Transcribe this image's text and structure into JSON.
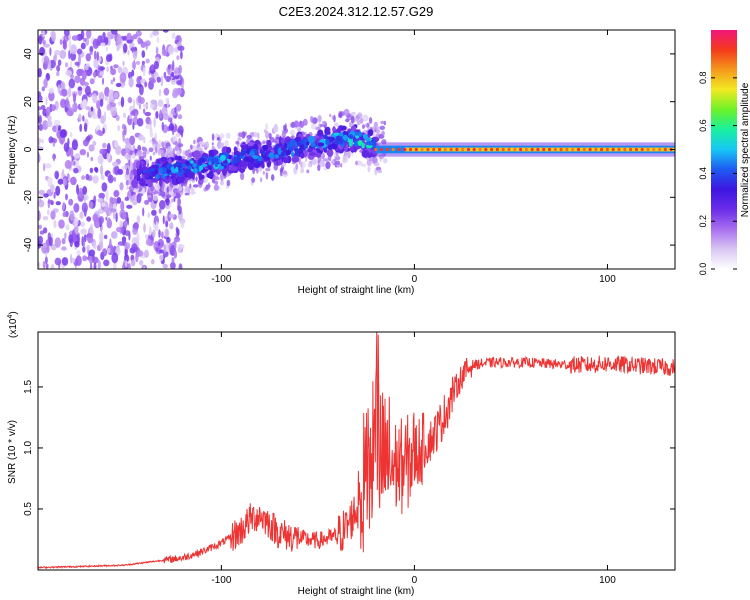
{
  "page": {
    "title": "C2E3.2024.312.12.57.G29"
  },
  "colors": {
    "snr_line": "#ee3333",
    "plot_border": "#000000",
    "colormap": [
      "#ffffff",
      "#d9c6f3",
      "#a86ff0",
      "#6a2ce8",
      "#3d16e0",
      "#1e5bf2",
      "#17c7f5",
      "#18f0a0",
      "#6cf227",
      "#f2ea22",
      "#f59a1c",
      "#f43a1c",
      "#f2167a"
    ]
  },
  "chart_data": [
    {
      "type": "heatmap",
      "name": "spectrogram",
      "xlabel": "Height of straight line (km)",
      "ylabel": "Frequency (Hz)",
      "xlim": [
        -195,
        135
      ],
      "ylim": [
        -50,
        50
      ],
      "x_ticks": [
        -100,
        0,
        100
      ],
      "y_ticks": [
        -40,
        -20,
        0,
        20,
        40
      ],
      "grid": false,
      "colorbar": {
        "label": "Normalized spectral amplitude",
        "range": [
          0.0,
          1.0
        ],
        "ticks": [
          "0.0",
          "0.2",
          "0.4",
          "0.6",
          "0.8"
        ],
        "tick_values": [
          0.0,
          0.2,
          0.4,
          0.6,
          0.8
        ]
      },
      "ridge": {
        "x": [
          -140,
          -120,
          -100,
          -80,
          -60,
          -40,
          -30,
          -20,
          -10,
          0,
          20,
          50,
          80,
          110,
          132
        ],
        "freq": [
          -10,
          -8,
          -5,
          -2,
          1,
          4,
          5,
          1,
          0,
          0,
          0,
          0,
          0,
          0,
          0
        ],
        "amplitude": [
          0.35,
          0.45,
          0.45,
          0.4,
          0.4,
          0.45,
          0.5,
          0.55,
          0.7,
          0.75,
          0.8,
          0.8,
          0.8,
          0.8,
          0.8
        ]
      }
    },
    {
      "type": "line",
      "name": "snr",
      "xlabel": "Height of straight line (km)",
      "ylabel": "SNR (10 * v/v)",
      "y_multiplier": "(x10",
      "y_multiplier_exp": "4",
      "y_multiplier_close": ")",
      "xlim": [
        -195,
        135
      ],
      "ylim": [
        0,
        1.95
      ],
      "x_ticks": [
        -100,
        0,
        100
      ],
      "y_ticks": [
        0.5,
        1.0,
        1.5
      ],
      "y_tick_labels": [
        "0.5",
        "1.0",
        "1.5"
      ],
      "grid": false,
      "series": [
        {
          "x": [
            -195,
            -170,
            -150,
            -140,
            -130,
            -120,
            -110,
            -100,
            -90,
            -85,
            -80,
            -75,
            -70,
            -60,
            -50,
            -40,
            -35,
            -30,
            -25,
            -20,
            -15,
            -10,
            -5,
            0,
            5,
            10,
            15,
            20,
            25,
            30,
            40,
            50,
            60,
            70,
            80,
            90,
            100,
            110,
            120,
            132
          ],
          "y": [
            0.02,
            0.03,
            0.04,
            0.06,
            0.08,
            0.1,
            0.15,
            0.22,
            0.32,
            0.42,
            0.45,
            0.38,
            0.3,
            0.26,
            0.24,
            0.28,
            0.35,
            0.5,
            0.75,
            0.9,
            0.9,
            0.85,
            0.85,
            0.95,
            1.0,
            1.1,
            1.25,
            1.45,
            1.6,
            1.68,
            1.7,
            1.7,
            1.7,
            1.69,
            1.68,
            1.68,
            1.69,
            1.68,
            1.67,
            1.66
          ]
        }
      ]
    }
  ]
}
